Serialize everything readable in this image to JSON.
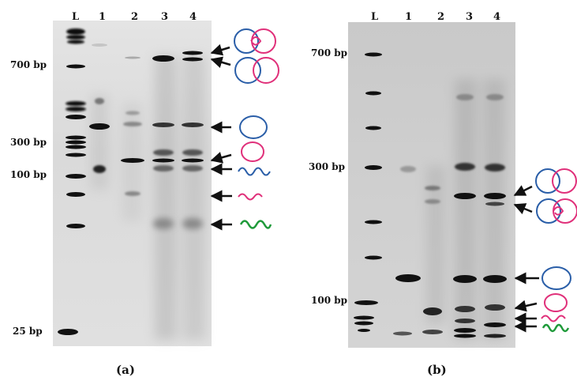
{
  "panel_a": {
    "caption": "(a)",
    "lanes": [
      "L",
      "1",
      "2",
      "3",
      "4"
    ],
    "size_markers": [
      "700 bp",
      "300 bp",
      "100 bp",
      "25 bp"
    ]
  },
  "panel_b": {
    "caption": "(b)",
    "lanes": [
      "L",
      "1",
      "2",
      "3",
      "4"
    ],
    "size_markers": [
      "700 bp",
      "300 bp",
      "100 bp"
    ]
  },
  "colors": {
    "blue": "#2a5ea8",
    "magenta": "#e0307a",
    "green": "#1f9a3a",
    "gel_bg": "#d9d9d9",
    "band": "#111111"
  }
}
